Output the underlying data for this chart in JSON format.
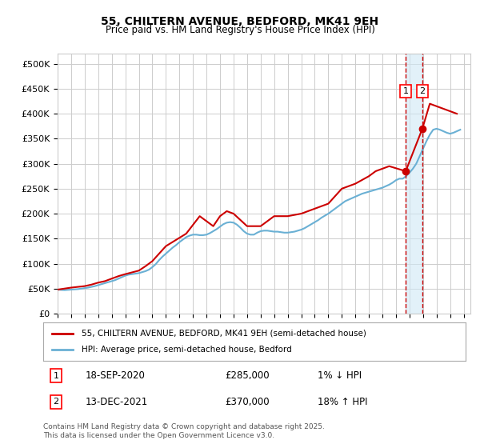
{
  "title1": "55, CHILTERN AVENUE, BEDFORD, MK41 9EH",
  "title2": "Price paid vs. HM Land Registry's House Price Index (HPI)",
  "ylabel_ticks": [
    "£0",
    "£50K",
    "£100K",
    "£150K",
    "£200K",
    "£250K",
    "£300K",
    "£350K",
    "£400K",
    "£450K",
    "£500K"
  ],
  "ytick_values": [
    0,
    50000,
    100000,
    150000,
    200000,
    250000,
    300000,
    350000,
    400000,
    450000,
    500000
  ],
  "ylim": [
    0,
    520000
  ],
  "xlim_start": 1995.0,
  "xlim_end": 2025.5,
  "hpi_color": "#6ab0d4",
  "price_color": "#cc0000",
  "legend_label1": "55, CHILTERN AVENUE, BEDFORD, MK41 9EH (semi-detached house)",
  "legend_label2": "HPI: Average price, semi-detached house, Bedford",
  "annotation1_box": "1",
  "annotation2_box": "2",
  "annotation1_date": "18-SEP-2020",
  "annotation1_price": "£285,000",
  "annotation1_hpi": "1% ↓ HPI",
  "annotation2_date": "13-DEC-2021",
  "annotation2_price": "£370,000",
  "annotation2_hpi": "18% ↑ HPI",
  "footnote": "Contains HM Land Registry data © Crown copyright and database right 2025.\nThis data is licensed under the Open Government Licence v3.0.",
  "sale1_x": 2020.72,
  "sale1_y": 285000,
  "sale2_x": 2021.95,
  "sale2_y": 370000,
  "shade_start": 2020.72,
  "shade_end": 2021.95,
  "background_color": "#ffffff",
  "grid_color": "#cccccc",
  "hpi_data_x": [
    1995.0,
    1995.25,
    1995.5,
    1995.75,
    1996.0,
    1996.25,
    1996.5,
    1996.75,
    1997.0,
    1997.25,
    1997.5,
    1997.75,
    1998.0,
    1998.25,
    1998.5,
    1998.75,
    1999.0,
    1999.25,
    1999.5,
    1999.75,
    2000.0,
    2000.25,
    2000.5,
    2000.75,
    2001.0,
    2001.25,
    2001.5,
    2001.75,
    2002.0,
    2002.25,
    2002.5,
    2002.75,
    2003.0,
    2003.25,
    2003.5,
    2003.75,
    2004.0,
    2004.25,
    2004.5,
    2004.75,
    2005.0,
    2005.25,
    2005.5,
    2005.75,
    2006.0,
    2006.25,
    2006.5,
    2006.75,
    2007.0,
    2007.25,
    2007.5,
    2007.75,
    2008.0,
    2008.25,
    2008.5,
    2008.75,
    2009.0,
    2009.25,
    2009.5,
    2009.75,
    2010.0,
    2010.25,
    2010.5,
    2010.75,
    2011.0,
    2011.25,
    2011.5,
    2011.75,
    2012.0,
    2012.25,
    2012.5,
    2012.75,
    2013.0,
    2013.25,
    2013.5,
    2013.75,
    2014.0,
    2014.25,
    2014.5,
    2014.75,
    2015.0,
    2015.25,
    2015.5,
    2015.75,
    2016.0,
    2016.25,
    2016.5,
    2016.75,
    2017.0,
    2017.25,
    2017.5,
    2017.75,
    2018.0,
    2018.25,
    2018.5,
    2018.75,
    2019.0,
    2019.25,
    2019.5,
    2019.75,
    2020.0,
    2020.25,
    2020.5,
    2020.75,
    2021.0,
    2021.25,
    2021.5,
    2021.75,
    2022.0,
    2022.25,
    2022.5,
    2022.75,
    2023.0,
    2023.25,
    2023.5,
    2023.75,
    2024.0,
    2024.25,
    2024.5,
    2024.75
  ],
  "hpi_data_y": [
    48000,
    47500,
    47000,
    47500,
    48000,
    48500,
    49000,
    50000,
    51000,
    52000,
    53500,
    55000,
    57000,
    59000,
    61000,
    63000,
    65000,
    67000,
    70000,
    73000,
    76000,
    78000,
    79000,
    80000,
    81000,
    83000,
    85000,
    88000,
    93000,
    99000,
    107000,
    114000,
    120000,
    126000,
    132000,
    137000,
    143000,
    148000,
    153000,
    156000,
    158000,
    158000,
    157000,
    157000,
    158000,
    161000,
    165000,
    169000,
    174000,
    179000,
    182000,
    183000,
    182000,
    178000,
    172000,
    165000,
    160000,
    158000,
    158000,
    162000,
    165000,
    166000,
    166000,
    165000,
    164000,
    164000,
    163000,
    162000,
    162000,
    163000,
    164000,
    166000,
    168000,
    171000,
    175000,
    179000,
    183000,
    187000,
    192000,
    196000,
    200000,
    205000,
    210000,
    215000,
    220000,
    225000,
    228000,
    231000,
    234000,
    237000,
    240000,
    242000,
    244000,
    246000,
    248000,
    250000,
    252000,
    255000,
    258000,
    262000,
    267000,
    270000,
    270000,
    275000,
    282000,
    290000,
    300000,
    315000,
    330000,
    345000,
    358000,
    368000,
    370000,
    368000,
    365000,
    362000,
    360000,
    362000,
    365000,
    368000
  ],
  "price_data_x": [
    1995.0,
    1995.5,
    1996.0,
    1997.0,
    1997.5,
    1998.0,
    1998.5,
    1999.5,
    2000.0,
    2001.0,
    2001.5,
    2002.0,
    2003.0,
    2004.5,
    2005.5,
    2006.5,
    2007.0,
    2007.5,
    2008.0,
    2009.0,
    2010.0,
    2011.0,
    2012.0,
    2013.0,
    2014.0,
    2015.0,
    2016.0,
    2017.0,
    2018.0,
    2018.5,
    2019.0,
    2019.5,
    2020.72,
    2021.95,
    2022.5,
    2023.0,
    2024.5
  ],
  "price_data_y": [
    48000,
    50000,
    52000,
    55000,
    58000,
    62000,
    65000,
    75000,
    79000,
    86000,
    95000,
    105000,
    135000,
    160000,
    195000,
    175000,
    195000,
    205000,
    200000,
    175000,
    175000,
    195000,
    195000,
    200000,
    210000,
    220000,
    250000,
    260000,
    275000,
    285000,
    290000,
    295000,
    285000,
    370000,
    420000,
    415000,
    400000
  ]
}
